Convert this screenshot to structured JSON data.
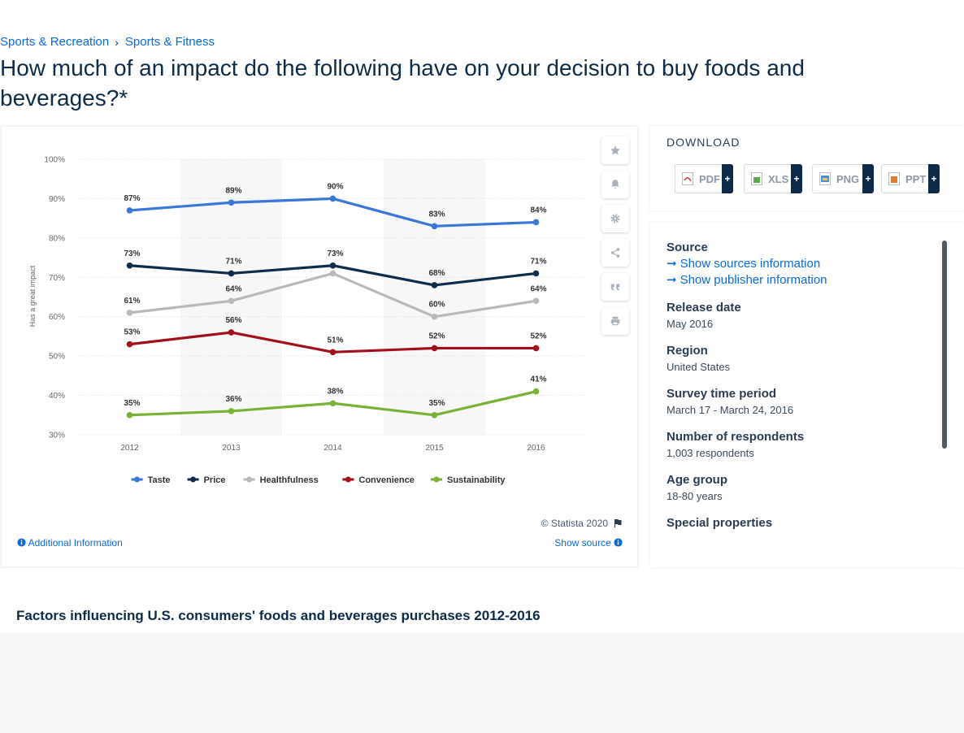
{
  "breadcrumb": {
    "items": [
      "Sports & Recreation",
      "Sports & Fitness"
    ],
    "separator": "›"
  },
  "page_title": "How much of an impact do the following have on your decision to buy foods and beverages?*",
  "toolbar": {
    "icons": [
      "star-icon",
      "bell-icon",
      "gear-icon",
      "share-icon",
      "quote-icon",
      "print-icon"
    ]
  },
  "chart_data": {
    "type": "line",
    "title": "",
    "xlabel": "",
    "ylabel": "Has a great impact",
    "x": [
      "2012",
      "2013",
      "2014",
      "2015",
      "2016"
    ],
    "y_ticks": [
      "30%",
      "40%",
      "50%",
      "60%",
      "70%",
      "80%",
      "90%",
      "100%"
    ],
    "ylim": [
      30,
      100
    ],
    "grid": true,
    "legend_position": "bottom",
    "series": [
      {
        "name": "Taste",
        "color": "#3a77d9",
        "values": [
          87,
          89,
          90,
          83,
          84
        ],
        "labels": [
          "87%",
          "89%",
          "90%",
          "83%",
          "84%"
        ]
      },
      {
        "name": "Price",
        "color": "#0f2d4a",
        "values": [
          73,
          71,
          73,
          68,
          71
        ],
        "labels": [
          "73%",
          "71%",
          "73%",
          "68%",
          "71%"
        ]
      },
      {
        "name": "Healthfulness",
        "color": "#b9b9b9",
        "values": [
          61,
          64,
          71,
          60,
          64
        ],
        "labels": [
          "61%",
          "64%",
          "",
          "60%",
          "64%"
        ]
      },
      {
        "name": "Convenience",
        "color": "#a3101d",
        "values": [
          53,
          56,
          51,
          52,
          52
        ],
        "labels": [
          "53%",
          "56%",
          "51%",
          "52%",
          "52%"
        ]
      },
      {
        "name": "Sustainability",
        "color": "#7ab236",
        "values": [
          35,
          36,
          38,
          35,
          41
        ],
        "labels": [
          "35%",
          "36%",
          "38%",
          "35%",
          "41%"
        ]
      }
    ]
  },
  "footer": {
    "copyright": "© Statista 2020",
    "additional_info": "Additional Information",
    "show_source": "Show source"
  },
  "download": {
    "title": "DOWNLOAD",
    "formats": [
      {
        "label": "PDF",
        "plus": "+"
      },
      {
        "label": "XLS",
        "plus": "+"
      },
      {
        "label": "PNG",
        "plus": "+"
      },
      {
        "label": "PPT",
        "plus": "+"
      }
    ]
  },
  "source": {
    "title": "Source",
    "links": [
      "Show sources information",
      "Show publisher information"
    ],
    "fields": [
      {
        "label": "Release date",
        "value": "May 2016"
      },
      {
        "label": "Region",
        "value": "United States"
      },
      {
        "label": "Survey time period",
        "value": "March 17 - March 24, 2016"
      },
      {
        "label": "Number of respondents",
        "value": "1,003 respondents"
      },
      {
        "label": "Age group",
        "value": "18-80 years"
      },
      {
        "label": "Special properties",
        "value": ""
      }
    ]
  },
  "description_title": "Factors influencing U.S. consumers' foods and beverages purchases 2012-2016"
}
